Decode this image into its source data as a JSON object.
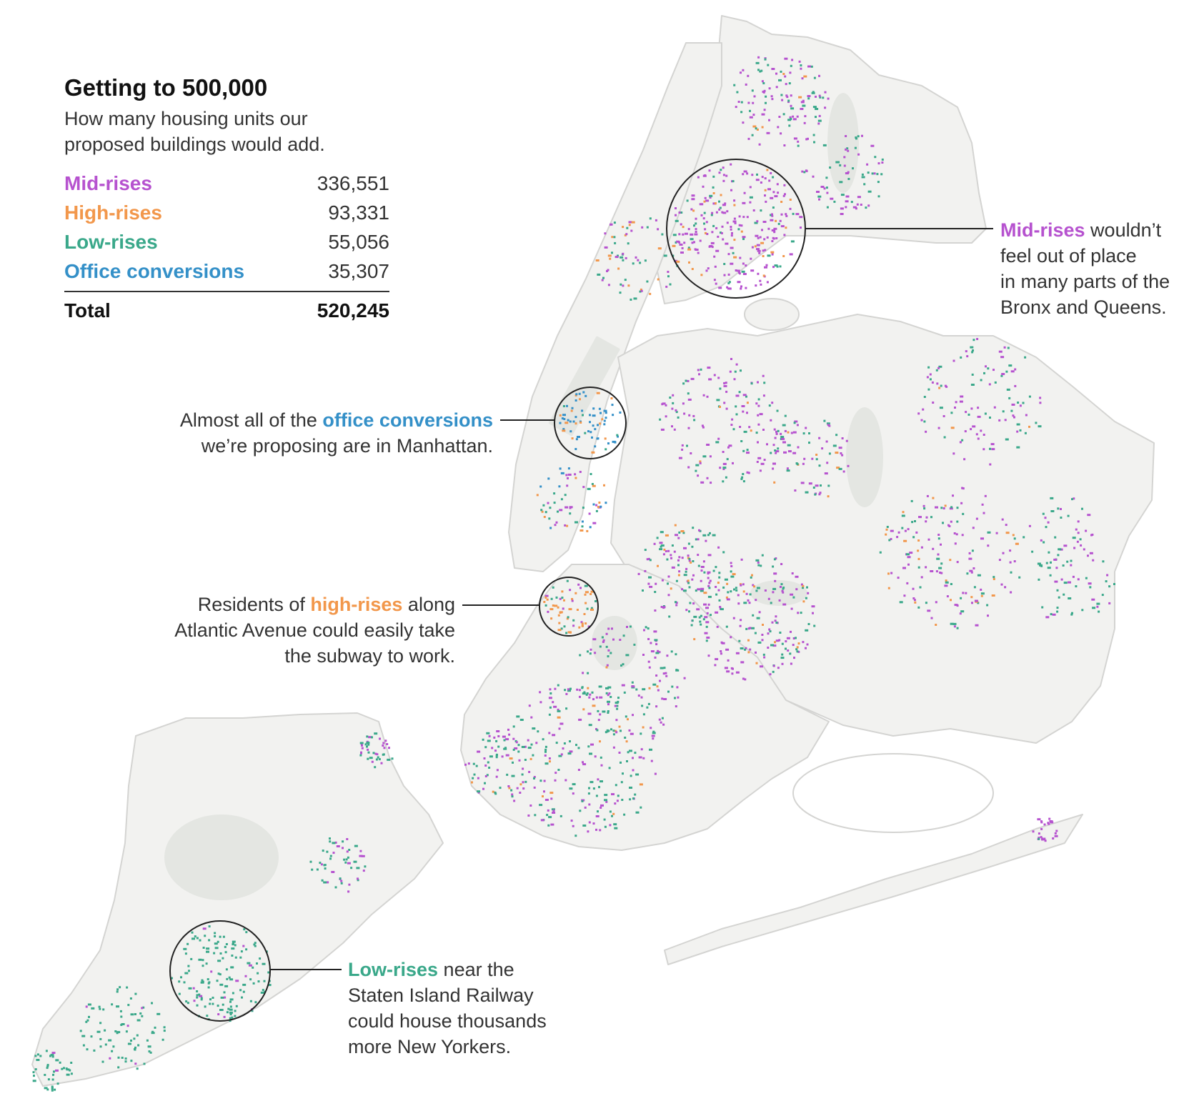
{
  "legend": {
    "title": "Getting to 500,000",
    "subtitle_line1": "How many housing units our",
    "subtitle_line2": "proposed buildings would add.",
    "rows": [
      {
        "label": "Mid-rises",
        "value": "336,551",
        "color": "#b652cf"
      },
      {
        "label": "High-rises",
        "value": "93,331",
        "color": "#f2974b"
      },
      {
        "label": "Low-rises",
        "value": "55,056",
        "color": "#3aa88a"
      },
      {
        "label": "Office conversions",
        "value": "35,307",
        "color": "#3490c8"
      }
    ],
    "total_label": "Total",
    "total_value": "520,245"
  },
  "annotations": {
    "midrises": {
      "highlight": "Mid-rises",
      "line1_rest": " wouldn’t",
      "line2": "feel out of place",
      "line3": "in many parts of the",
      "line4": "Bronx and Queens."
    },
    "office": {
      "line1_pre": "Almost all of the ",
      "highlight": "office conversions",
      "line2": "we’re proposing are in Manhattan."
    },
    "highrises": {
      "line1_pre": "Residents of ",
      "highlight": "high-rises",
      "line1_post": " along",
      "line2": "Atlantic Avenue could easily take",
      "line3": "the subway to work."
    },
    "lowrises": {
      "highlight": "Low-rises",
      "line1_rest": " near the",
      "line2": "Staten Island Railway",
      "line3": "could house thousands",
      "line4": "more New Yorkers."
    }
  },
  "colors": {
    "midrise": "#b652cf",
    "highrise": "#f2974b",
    "lowrise": "#3aa88a",
    "office": "#3490c8",
    "land": "#f2f2f0",
    "park": "#e4e6e2",
    "coast": "#d6d6d4",
    "leader": "#222222"
  }
}
